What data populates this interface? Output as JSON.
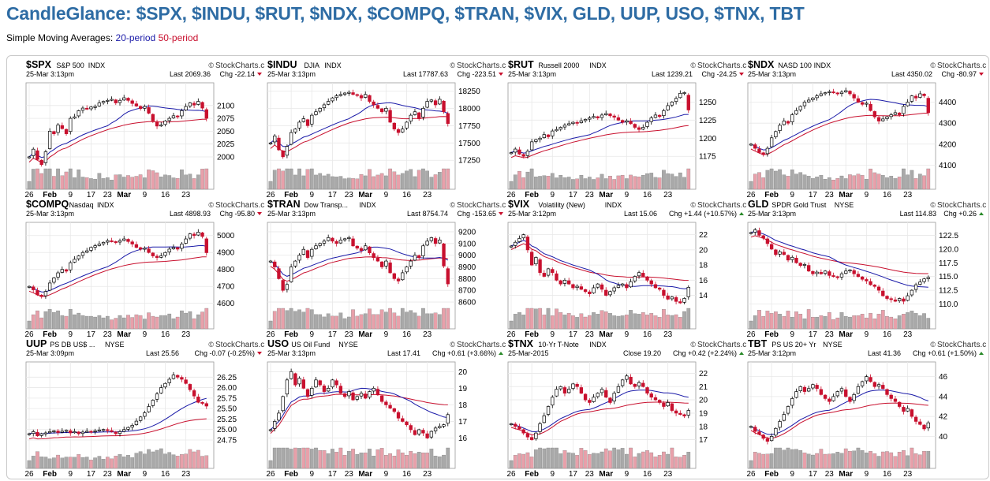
{
  "page": {
    "title": "CandleGlance: $SPX, $INDU, $RUT, $NDX, $COMPQ, $TRAN, $VIX, GLD, UUP, USO, $TNX, TBT",
    "legend_prefix": "Simple Moving Averages:",
    "legend_20": "20-period",
    "legend_50": "50-period",
    "colors": {
      "title": "#2e6ca4",
      "ma20": "#1a1aa8",
      "ma50": "#c8102e",
      "down": "#c8102e",
      "up_volume": "#a9a9a9",
      "down_volume": "#e8a0aa"
    },
    "watermark": "StockCharts.com"
  },
  "chart_data": [
    {
      "type": "candlestick",
      "symbol": "$SPX",
      "name": "S&P 500",
      "exchange": "INDX",
      "date": "25-Mar 3:13pm",
      "last_label": "Last",
      "last": "2069.36",
      "chg_label": "Chg",
      "chg": "-22.14",
      "dir": "down",
      "ylim": [
        1980,
        2135
      ],
      "y_ticks": [
        "2100",
        "2075",
        "2050",
        "2025",
        "2000"
      ],
      "x_ticks": [
        "26",
        "Feb",
        "9",
        "17",
        "23",
        "Mar",
        "9",
        "16",
        "23"
      ],
      "close": [
        2000,
        2015,
        1995,
        1985,
        2010,
        2050,
        2045,
        2062,
        2055,
        2045,
        2075,
        2078,
        2090,
        2095,
        2093,
        2097,
        2098,
        2105,
        2108,
        2110,
        2112,
        2105,
        2110,
        2115,
        2110,
        2104,
        2099,
        2094,
        2098,
        2085,
        2070,
        2060,
        2062,
        2070,
        2075,
        2080,
        2078,
        2090,
        2098,
        2105,
        2101,
        2108,
        2095,
        2075
      ]
    },
    {
      "type": "candlestick",
      "symbol": "$INDU",
      "name": "DJIA",
      "exchange": "INDX",
      "date": "25-Mar 3:13pm",
      "last_label": "Last",
      "last": "17787.63",
      "chg_label": "Chg",
      "chg": "-223.51",
      "dir": "down",
      "ylim": [
        17150,
        18300
      ],
      "y_ticks": [
        "18250",
        "18000",
        "17750",
        "17500",
        "17250"
      ],
      "x_ticks": [
        "26",
        "Feb",
        "9",
        "17",
        "23",
        "Mar",
        "9",
        "16",
        "23"
      ],
      "close": [
        17500,
        17600,
        17400,
        17300,
        17450,
        17650,
        17700,
        17800,
        17850,
        17750,
        17900,
        17950,
        18000,
        18050,
        18100,
        18150,
        18180,
        18200,
        18220,
        18230,
        18200,
        18190,
        18150,
        18200,
        18100,
        18050,
        18000,
        17950,
        18000,
        17800,
        17700,
        17650,
        17700,
        17800,
        17900,
        17950,
        17850,
        18000,
        18100,
        18120,
        18050,
        18130,
        17950,
        17780
      ]
    },
    {
      "type": "candlestick",
      "symbol": "$RUT",
      "name": "Russell 2000",
      "exchange": "INDX",
      "date": "25-Mar 3:13pm",
      "last_label": "Last",
      "last": "1239.21",
      "chg_label": "Chg",
      "chg": "-24.25",
      "dir": "down",
      "ylim": [
        1160,
        1270
      ],
      "y_ticks": [
        "1250",
        "1225",
        "1200",
        "1175"
      ],
      "x_ticks": [
        "26",
        "Feb",
        "9",
        "17",
        "23",
        "Mar",
        "9",
        "16",
        "23"
      ],
      "close": [
        1180,
        1185,
        1178,
        1175,
        1182,
        1195,
        1198,
        1200,
        1205,
        1202,
        1210,
        1212,
        1215,
        1218,
        1220,
        1222,
        1221,
        1224,
        1226,
        1228,
        1230,
        1228,
        1232,
        1234,
        1231,
        1229,
        1225,
        1222,
        1224,
        1220,
        1215,
        1212,
        1215,
        1222,
        1228,
        1232,
        1230,
        1238,
        1245,
        1250,
        1255,
        1262,
        1263,
        1239
      ]
    },
    {
      "type": "candlestick",
      "symbol": "$NDX",
      "name": "NASD 100",
      "exchange": "INDX",
      "date": "25-Mar 3:13pm",
      "last_label": "Last",
      "last": "4350.02",
      "chg_label": "Chg",
      "chg": "-80.97",
      "dir": "down",
      "ylim": [
        4090,
        4470
      ],
      "y_ticks": [
        "4400",
        "4300",
        "4200",
        "4100"
      ],
      "x_ticks": [
        "26",
        "Feb",
        "9",
        "17",
        "23",
        "Mar",
        "9",
        "16",
        "23"
      ],
      "close": [
        4200,
        4180,
        4160,
        4150,
        4180,
        4230,
        4260,
        4290,
        4310,
        4300,
        4340,
        4360,
        4380,
        4400,
        4410,
        4420,
        4430,
        4440,
        4445,
        4450,
        4445,
        4440,
        4448,
        4455,
        4440,
        4420,
        4400,
        4390,
        4395,
        4360,
        4330,
        4310,
        4320,
        4330,
        4340,
        4350,
        4340,
        4380,
        4400,
        4430,
        4420,
        4440,
        4431,
        4350
      ]
    },
    {
      "type": "candlestick",
      "symbol": "$COMPQ",
      "name": "Nasdaq",
      "exchange": "INDX",
      "date": "25-Mar 3:13pm",
      "last_label": "Last",
      "last": "4898.93",
      "chg_label": "Chg",
      "chg": "-95.80",
      "dir": "down",
      "ylim": [
        4580,
        5050
      ],
      "y_ticks": [
        "5000",
        "4900",
        "4800",
        "4700",
        "4600"
      ],
      "x_ticks": [
        "26",
        "Feb",
        "9",
        "17",
        "23",
        "Mar",
        "9",
        "16",
        "23"
      ],
      "close": [
        4700,
        4680,
        4650,
        4640,
        4670,
        4720,
        4750,
        4780,
        4800,
        4790,
        4840,
        4860,
        4880,
        4900,
        4910,
        4930,
        4940,
        4950,
        4960,
        4970,
        4965,
        4960,
        4970,
        4980,
        4965,
        4950,
        4930,
        4920,
        4925,
        4900,
        4880,
        4870,
        4880,
        4900,
        4920,
        4930,
        4920,
        4950,
        4980,
        5010,
        5000,
        5020,
        4995,
        4899
      ]
    },
    {
      "type": "candlestick",
      "symbol": "$TRAN",
      "name": "Dow Transp...",
      "exchange": "INDX",
      "date": "25-Mar 3:13pm",
      "last_label": "Last",
      "last": "8754.74",
      "chg_label": "Chg",
      "chg": "-153.65",
      "dir": "down",
      "ylim": [
        8560,
        9240
      ],
      "y_ticks": [
        "9200",
        "9100",
        "9000",
        "8900",
        "8800",
        "8700",
        "8600"
      ],
      "x_ticks": [
        "26",
        "Feb",
        "9",
        "17",
        "23",
        "Mar",
        "9",
        "16",
        "23"
      ],
      "close": [
        8950,
        8900,
        8800,
        8700,
        8750,
        8900,
        8950,
        9000,
        9050,
        8980,
        9050,
        9080,
        9100,
        9120,
        9150,
        9120,
        9100,
        9130,
        9140,
        9150,
        9080,
        9060,
        9040,
        9080,
        9020,
        8980,
        8950,
        8900,
        8950,
        8850,
        8800,
        8780,
        8850,
        8900,
        8950,
        9000,
        8980,
        9080,
        9120,
        9150,
        9100,
        9130,
        8908,
        8755
      ]
    },
    {
      "type": "candlestick",
      "symbol": "$VIX",
      "name": "Volatility (New)",
      "exchange": "INDX",
      "date": "25-Mar 3:12pm",
      "last_label": "Last",
      "last": "15.06",
      "chg_label": "Chg",
      "chg": "+1.44 (+10.57%)",
      "dir": "up",
      "ylim": [
        12.5,
        23
      ],
      "y_ticks": [
        "22",
        "20",
        "18",
        "16",
        "14"
      ],
      "x_ticks": [
        "26",
        "Feb",
        "9",
        "17",
        "23",
        "Mar",
        "9",
        "16",
        "23"
      ],
      "close": [
        20.5,
        21,
        21.5,
        22,
        20,
        18,
        19,
        17,
        16.5,
        17.5,
        17,
        16,
        15.5,
        16,
        15.5,
        15,
        15.2,
        14.8,
        14.5,
        14.2,
        15,
        15.5,
        14.8,
        14,
        14.5,
        15,
        15.3,
        15.5,
        15,
        15.8,
        16.5,
        17,
        16.5,
        16,
        15.5,
        15,
        14.8,
        14,
        13.5,
        13.8,
        13.2,
        13.0,
        13.6,
        15.06
      ]
    },
    {
      "type": "candlestick",
      "symbol": "GLD",
      "name": "SPDR Gold Trust",
      "exchange": "NYSE",
      "date": "25-Mar 3:13pm",
      "last_label": "Last",
      "last": "114.83",
      "chg_label": "Chg",
      "chg": "+0.26",
      "dir": "up",
      "ylim": [
        109.5,
        124
      ],
      "y_ticks": [
        "122.5",
        "120.0",
        "117.5",
        "115.0",
        "112.5",
        "110.0"
      ],
      "x_ticks": [
        "26",
        "Feb",
        "9",
        "17",
        "23",
        "Mar",
        "9",
        "16",
        "23"
      ],
      "close": [
        123,
        123.5,
        122.5,
        122,
        121,
        120,
        119,
        119.5,
        119,
        118,
        118.5,
        117.5,
        117,
        117.2,
        116,
        115.5,
        115.8,
        115.5,
        116,
        115.2,
        115,
        114.8,
        115.5,
        116,
        116.2,
        115.5,
        115,
        114.5,
        114.2,
        113.5,
        113.2,
        112.5,
        111.5,
        111,
        110.8,
        110.5,
        111,
        110.5,
        111.5,
        112.5,
        113.5,
        114,
        114.57,
        114.83
      ]
    },
    {
      "type": "candlestick",
      "symbol": "UUP",
      "name": "PS DB US$ ...",
      "exchange": "NYSE",
      "date": "25-Mar 3:09pm",
      "last_label": "Last",
      "last": "25.56",
      "chg_label": "Chg",
      "chg": "-0.07 (-0.25%)",
      "dir": "down",
      "ylim": [
        24.6,
        26.5
      ],
      "y_ticks": [
        "26.25",
        "26.00",
        "25.75",
        "25.50",
        "25.25",
        "25.00",
        "24.75"
      ],
      "x_ticks": [
        "26",
        "Feb",
        "9",
        "17",
        "23",
        "Mar",
        "9",
        "16",
        "23"
      ],
      "close": [
        24.9,
        24.95,
        24.85,
        24.9,
        24.92,
        24.95,
        24.97,
        24.93,
        24.96,
        24.98,
        24.92,
        24.95,
        24.9,
        24.94,
        24.96,
        24.95,
        24.97,
        24.99,
        25.0,
        24.98,
        24.95,
        24.9,
        24.95,
        25.0,
        25.05,
        25.1,
        25.2,
        25.3,
        25.4,
        25.55,
        25.7,
        25.85,
        26.0,
        26.1,
        26.2,
        26.3,
        26.25,
        26.2,
        26.1,
        25.95,
        25.8,
        25.65,
        25.63,
        25.56
      ]
    },
    {
      "type": "candlestick",
      "symbol": "USO",
      "name": "US Oil Fund",
      "exchange": "NYSE",
      "date": "25-Mar 3:13pm",
      "last_label": "Last",
      "last": "17.41",
      "chg_label": "Chg",
      "chg": "+0.61 (+3.66%)",
      "dir": "up",
      "ylim": [
        15.5,
        20.3
      ],
      "y_ticks": [
        "20",
        "19",
        "18",
        "17",
        "16"
      ],
      "x_ticks": [
        "26",
        "Feb",
        "9",
        "17",
        "23",
        "Mar",
        "9",
        "16",
        "23"
      ],
      "close": [
        16.5,
        17,
        17.5,
        18.5,
        19.5,
        20,
        19.2,
        19.6,
        19.0,
        18.5,
        19,
        19.5,
        19.2,
        18.8,
        19.0,
        19.5,
        19.2,
        18.7,
        18.5,
        18.8,
        18.3,
        18.5,
        18.7,
        18.4,
        18.8,
        19.0,
        18.6,
        18.2,
        18.0,
        17.8,
        17.6,
        17.2,
        17.0,
        16.8,
        16.5,
        16.2,
        16.5,
        16.3,
        16.0,
        16.4,
        16.6,
        16.7,
        16.8,
        17.41
      ]
    },
    {
      "type": "candlestick",
      "symbol": "$TNX",
      "name": "10-Yr T-Note",
      "exchange": "INDX",
      "date": "25-Mar-2015",
      "last_label": "Close",
      "last": "19.20",
      "chg_label": "Chg",
      "chg": "+0.42 (+2.24%)",
      "dir": "up",
      "ylim": [
        16.5,
        22.5
      ],
      "y_ticks": [
        "22",
        "21",
        "20",
        "19",
        "18",
        "17"
      ],
      "x_ticks": [
        "26",
        "Feb",
        "9",
        "17",
        "23",
        "Mar",
        "9",
        "16",
        "23"
      ],
      "close": [
        18.2,
        18.0,
        17.8,
        17.5,
        17.2,
        17.0,
        17.5,
        18.2,
        18.8,
        19.5,
        20.2,
        20.8,
        21.0,
        20.5,
        20.8,
        21.2,
        21.0,
        20.5,
        20.0,
        19.8,
        20.2,
        20.5,
        20.8,
        20.2,
        19.8,
        20.5,
        21.0,
        21.5,
        21.8,
        21.2,
        21.0,
        21.3,
        21.0,
        20.5,
        20.2,
        20.0,
        19.8,
        19.5,
        19.8,
        19.2,
        19.0,
        18.9,
        18.78,
        19.2
      ]
    },
    {
      "type": "candlestick",
      "symbol": "TBT",
      "name": "PS US 20+ Yr",
      "exchange": "NYSE",
      "date": "25-Mar 3:12pm",
      "last_label": "Last",
      "last": "41.36",
      "chg_label": "Chg",
      "chg": "+0.61 (+1.50%)",
      "dir": "up",
      "ylim": [
        39,
        47
      ],
      "y_ticks": [
        "46",
        "44",
        "42",
        "40"
      ],
      "x_ticks": [
        "26",
        "Feb",
        "9",
        "17",
        "23",
        "Mar",
        "9",
        "16",
        "23"
      ],
      "close": [
        41.0,
        40.5,
        40.2,
        39.8,
        39.5,
        40.0,
        40.8,
        41.5,
        42.2,
        43.0,
        43.8,
        44.5,
        45.0,
        44.5,
        44.8,
        45.2,
        44.8,
        44.2,
        43.8,
        43.5,
        44.0,
        44.5,
        44.8,
        44.0,
        43.5,
        44.2,
        45.0,
        45.5,
        46.0,
        45.5,
        45.0,
        45.2,
        44.8,
        44.2,
        43.8,
        43.5,
        43.0,
        42.5,
        42.8,
        42.0,
        41.5,
        41.2,
        40.75,
        41.36
      ]
    }
  ]
}
